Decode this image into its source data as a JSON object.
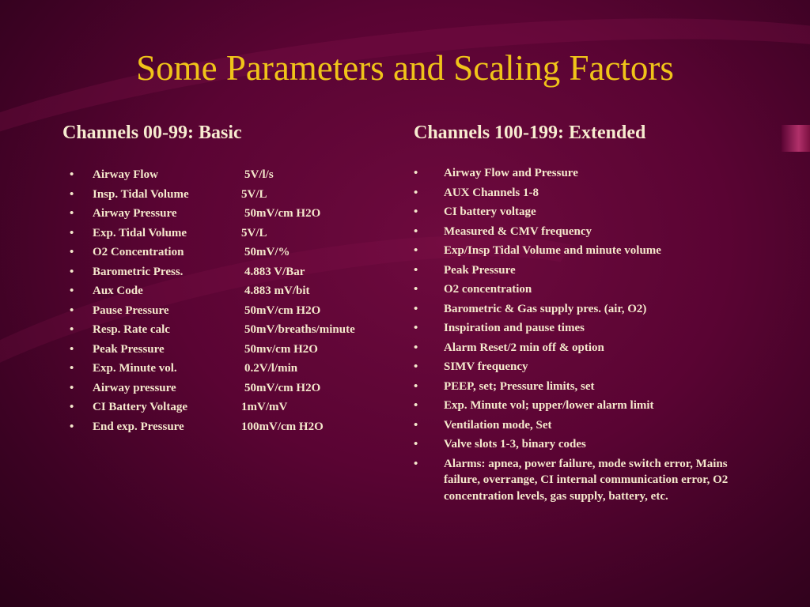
{
  "title": "Some Parameters and Scaling Factors",
  "left": {
    "heading": "Channels 00-99: Basic",
    "items": [
      {
        "label": "Airway Flow",
        "value": "5V/l/s"
      },
      {
        "label": "Insp. Tidal Volume",
        "value": "5V/L"
      },
      {
        "label": "Airway Pressure",
        "value": "50mV/cm H2O"
      },
      {
        "label": "Exp. Tidal Volume",
        "value": "5V/L"
      },
      {
        "label": "O2 Concentration",
        "value": "50mV/%"
      },
      {
        "label": "Barometric Press.",
        "value": "4.883 V/Bar"
      },
      {
        "label": "Aux Code",
        "value": "4.883 mV/bit"
      },
      {
        "label": "Pause Pressure",
        "value": "50mV/cm H2O"
      },
      {
        "label": "Resp. Rate calc",
        "value": "50mV/breaths/minute"
      },
      {
        "label": "Peak Pressure",
        "value": "50mv/cm H2O"
      },
      {
        "label": "Exp. Minute vol.",
        "value": "0.2V/l/min"
      },
      {
        "label": "Airway pressure",
        "value": "50mV/cm H2O"
      },
      {
        "label": "CI Battery Voltage",
        "value": "1mV/mV"
      },
      {
        "label": "End exp. Pressure",
        "value": "100mV/cm H2O"
      }
    ]
  },
  "right": {
    "heading": "Channels 100-199: Extended",
    "items": [
      "Airway Flow and Pressure",
      "AUX Channels 1-8",
      "CI battery voltage",
      "Measured & CMV frequency",
      "Exp/Insp Tidal Volume and minute volume",
      "Peak Pressure",
      "O2 concentration",
      "Barometric & Gas supply pres. (air, O2)",
      "Inspiration and pause times",
      "Alarm Reset/2 min off & option",
      "SIMV frequency",
      "PEEP, set; Pressure limits, set",
      "Exp. Minute vol; upper/lower alarm limit",
      "Ventilation mode, Set",
      "Valve slots 1-3, binary codes",
      "Alarms: apnea, power failure, mode switch error, Mains failure, overrange, CI internal communication error, O2 concentration levels, gas supply, battery, etc."
    ]
  },
  "bullet": "•",
  "colors": {
    "background": "#5a0433",
    "title": "#f0c419",
    "text": "#f5e8cc"
  }
}
